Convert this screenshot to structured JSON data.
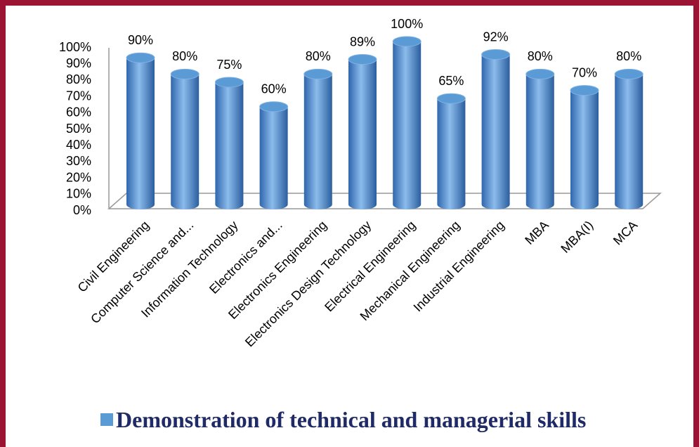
{
  "chart_data": {
    "type": "bar",
    "categories": [
      "Civil Engineering",
      "Computer Science and...",
      "Information Technology",
      "Electronics and...",
      "Electronics Engineering",
      "Electronics Design Technology",
      "Electrical Engineering",
      "Mechanical Engineering",
      "Industrial Engineering",
      "MBA",
      "MBA(I)",
      "MCA"
    ],
    "series": [
      {
        "name": "Demonstration of technical and managerial skills",
        "color": "#5b9bd5",
        "values": [
          90,
          80,
          75,
          60,
          80,
          89,
          100,
          65,
          92,
          80,
          70,
          80
        ],
        "value_labels": [
          "90%",
          "80%",
          "75%",
          "60%",
          "80%",
          "89%",
          "100%",
          "65%",
          "92%",
          "80%",
          "70%",
          "80%"
        ]
      }
    ],
    "ylim": [
      0,
      100
    ],
    "yticks": [
      {
        "value": 0,
        "label": "0%"
      },
      {
        "value": 10,
        "label": "10%"
      },
      {
        "value": 20,
        "label": "20%"
      },
      {
        "value": 30,
        "label": "30%"
      },
      {
        "value": 40,
        "label": "40%"
      },
      {
        "value": 50,
        "label": "50%"
      },
      {
        "value": 60,
        "label": "60%"
      },
      {
        "value": 70,
        "label": "70%"
      },
      {
        "value": 80,
        "label": "80%"
      },
      {
        "value": 90,
        "label": "90%"
      },
      {
        "value": 100,
        "label": "100%"
      }
    ],
    "legend": "bottom"
  }
}
